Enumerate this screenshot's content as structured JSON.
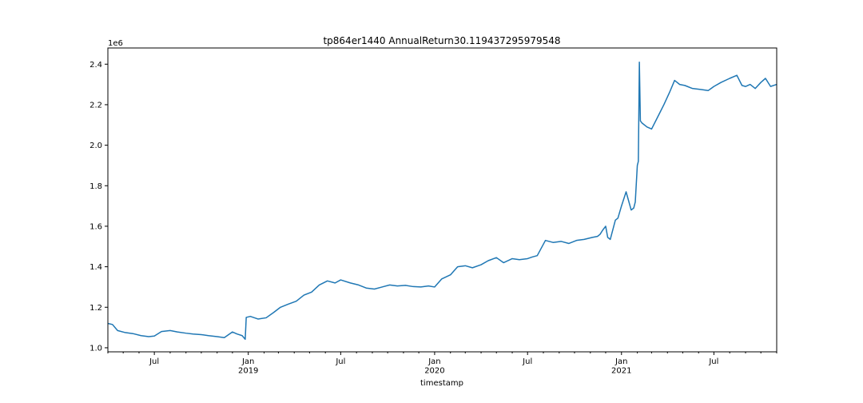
{
  "chart_data": {
    "type": "line",
    "title": "tp864er1440 AnnualReturn30.119437295979548",
    "xlabel": "timestamp",
    "ylabel": "",
    "y_scale_label": "1e6",
    "y_scale": 1000000,
    "xlim": [
      "2018-04-01",
      "2021-11-01"
    ],
    "ylim": [
      980000,
      2480000
    ],
    "y_ticks": [
      1000000,
      1200000,
      1400000,
      1600000,
      1800000,
      2000000,
      2200000,
      2400000
    ],
    "y_tick_labels": [
      "1.0",
      "1.2",
      "1.4",
      "1.6",
      "1.8",
      "2.0",
      "2.2",
      "2.4"
    ],
    "x_major_ticks": [
      {
        "date": "2018-07-01",
        "label": "Jul"
      },
      {
        "date": "2019-01-01",
        "label": "Jan\n2019"
      },
      {
        "date": "2019-07-01",
        "label": "Jul"
      },
      {
        "date": "2020-01-01",
        "label": "Jan\n2020"
      },
      {
        "date": "2020-07-01",
        "label": "Jul"
      },
      {
        "date": "2021-01-01",
        "label": "Jan\n2021"
      },
      {
        "date": "2021-07-01",
        "label": "Jul"
      }
    ],
    "grid": false,
    "series": [
      {
        "color": "#1f77b4",
        "x": [
          "2018-04-01",
          "2018-04-10",
          "2018-04-20",
          "2018-05-05",
          "2018-05-20",
          "2018-06-05",
          "2018-06-20",
          "2018-07-01",
          "2018-07-15",
          "2018-08-01",
          "2018-08-15",
          "2018-09-01",
          "2018-09-15",
          "2018-10-01",
          "2018-10-15",
          "2018-11-01",
          "2018-11-15",
          "2018-12-01",
          "2018-12-10",
          "2018-12-20",
          "2018-12-26",
          "2018-12-28",
          "2019-01-05",
          "2019-01-20",
          "2019-02-05",
          "2019-02-20",
          "2019-03-05",
          "2019-03-20",
          "2019-04-05",
          "2019-04-20",
          "2019-05-05",
          "2019-05-20",
          "2019-06-05",
          "2019-06-20",
          "2019-07-01",
          "2019-07-20",
          "2019-08-05",
          "2019-08-20",
          "2019-09-05",
          "2019-09-20",
          "2019-10-05",
          "2019-10-20",
          "2019-11-05",
          "2019-11-20",
          "2019-12-05",
          "2019-12-20",
          "2020-01-01",
          "2020-01-15",
          "2020-02-01",
          "2020-02-15",
          "2020-03-01",
          "2020-03-15",
          "2020-04-01",
          "2020-04-15",
          "2020-05-01",
          "2020-05-15",
          "2020-06-01",
          "2020-06-15",
          "2020-07-01",
          "2020-07-10",
          "2020-07-20",
          "2020-08-05",
          "2020-08-20",
          "2020-09-05",
          "2020-09-20",
          "2020-10-05",
          "2020-10-20",
          "2020-11-05",
          "2020-11-15",
          "2020-11-20",
          "2020-11-25",
          "2020-12-01",
          "2020-12-05",
          "2020-12-10",
          "2020-12-20",
          "2020-12-25",
          "2021-01-01",
          "2021-01-10",
          "2021-01-20",
          "2021-01-25",
          "2021-01-28",
          "2021-02-01",
          "2021-02-03",
          "2021-02-05",
          "2021-02-07",
          "2021-02-10",
          "2021-02-20",
          "2021-03-01",
          "2021-03-15",
          "2021-03-25",
          "2021-04-05",
          "2021-04-15",
          "2021-04-25",
          "2021-05-05",
          "2021-05-10",
          "2021-05-20",
          "2021-06-05",
          "2021-06-20",
          "2021-07-01",
          "2021-07-15",
          "2021-08-01",
          "2021-08-15",
          "2021-08-25",
          "2021-09-01",
          "2021-09-10",
          "2021-09-20",
          "2021-10-01",
          "2021-10-10",
          "2021-10-20",
          "2021-11-01"
        ],
        "y": [
          1120000,
          1115000,
          1085000,
          1075000,
          1070000,
          1060000,
          1055000,
          1058000,
          1080000,
          1085000,
          1078000,
          1072000,
          1068000,
          1065000,
          1060000,
          1055000,
          1050000,
          1078000,
          1068000,
          1060000,
          1042000,
          1150000,
          1155000,
          1142000,
          1148000,
          1175000,
          1200000,
          1215000,
          1230000,
          1260000,
          1275000,
          1310000,
          1330000,
          1320000,
          1335000,
          1320000,
          1310000,
          1295000,
          1290000,
          1300000,
          1310000,
          1305000,
          1308000,
          1302000,
          1300000,
          1305000,
          1300000,
          1340000,
          1360000,
          1400000,
          1405000,
          1395000,
          1410000,
          1430000,
          1445000,
          1420000,
          1440000,
          1435000,
          1440000,
          1448000,
          1455000,
          1530000,
          1520000,
          1525000,
          1515000,
          1530000,
          1535000,
          1545000,
          1550000,
          1560000,
          1580000,
          1600000,
          1545000,
          1535000,
          1630000,
          1640000,
          1700000,
          1770000,
          1680000,
          1690000,
          1720000,
          1900000,
          1920000,
          2410000,
          2120000,
          2110000,
          2090000,
          2080000,
          2150000,
          2200000,
          2260000,
          2320000,
          2300000,
          2295000,
          2290000,
          2280000,
          2275000,
          2270000,
          2290000,
          2310000,
          2330000,
          2345000,
          2295000,
          2290000,
          2300000,
          2280000,
          2310000,
          2330000,
          2290000,
          2300000
        ]
      }
    ]
  }
}
